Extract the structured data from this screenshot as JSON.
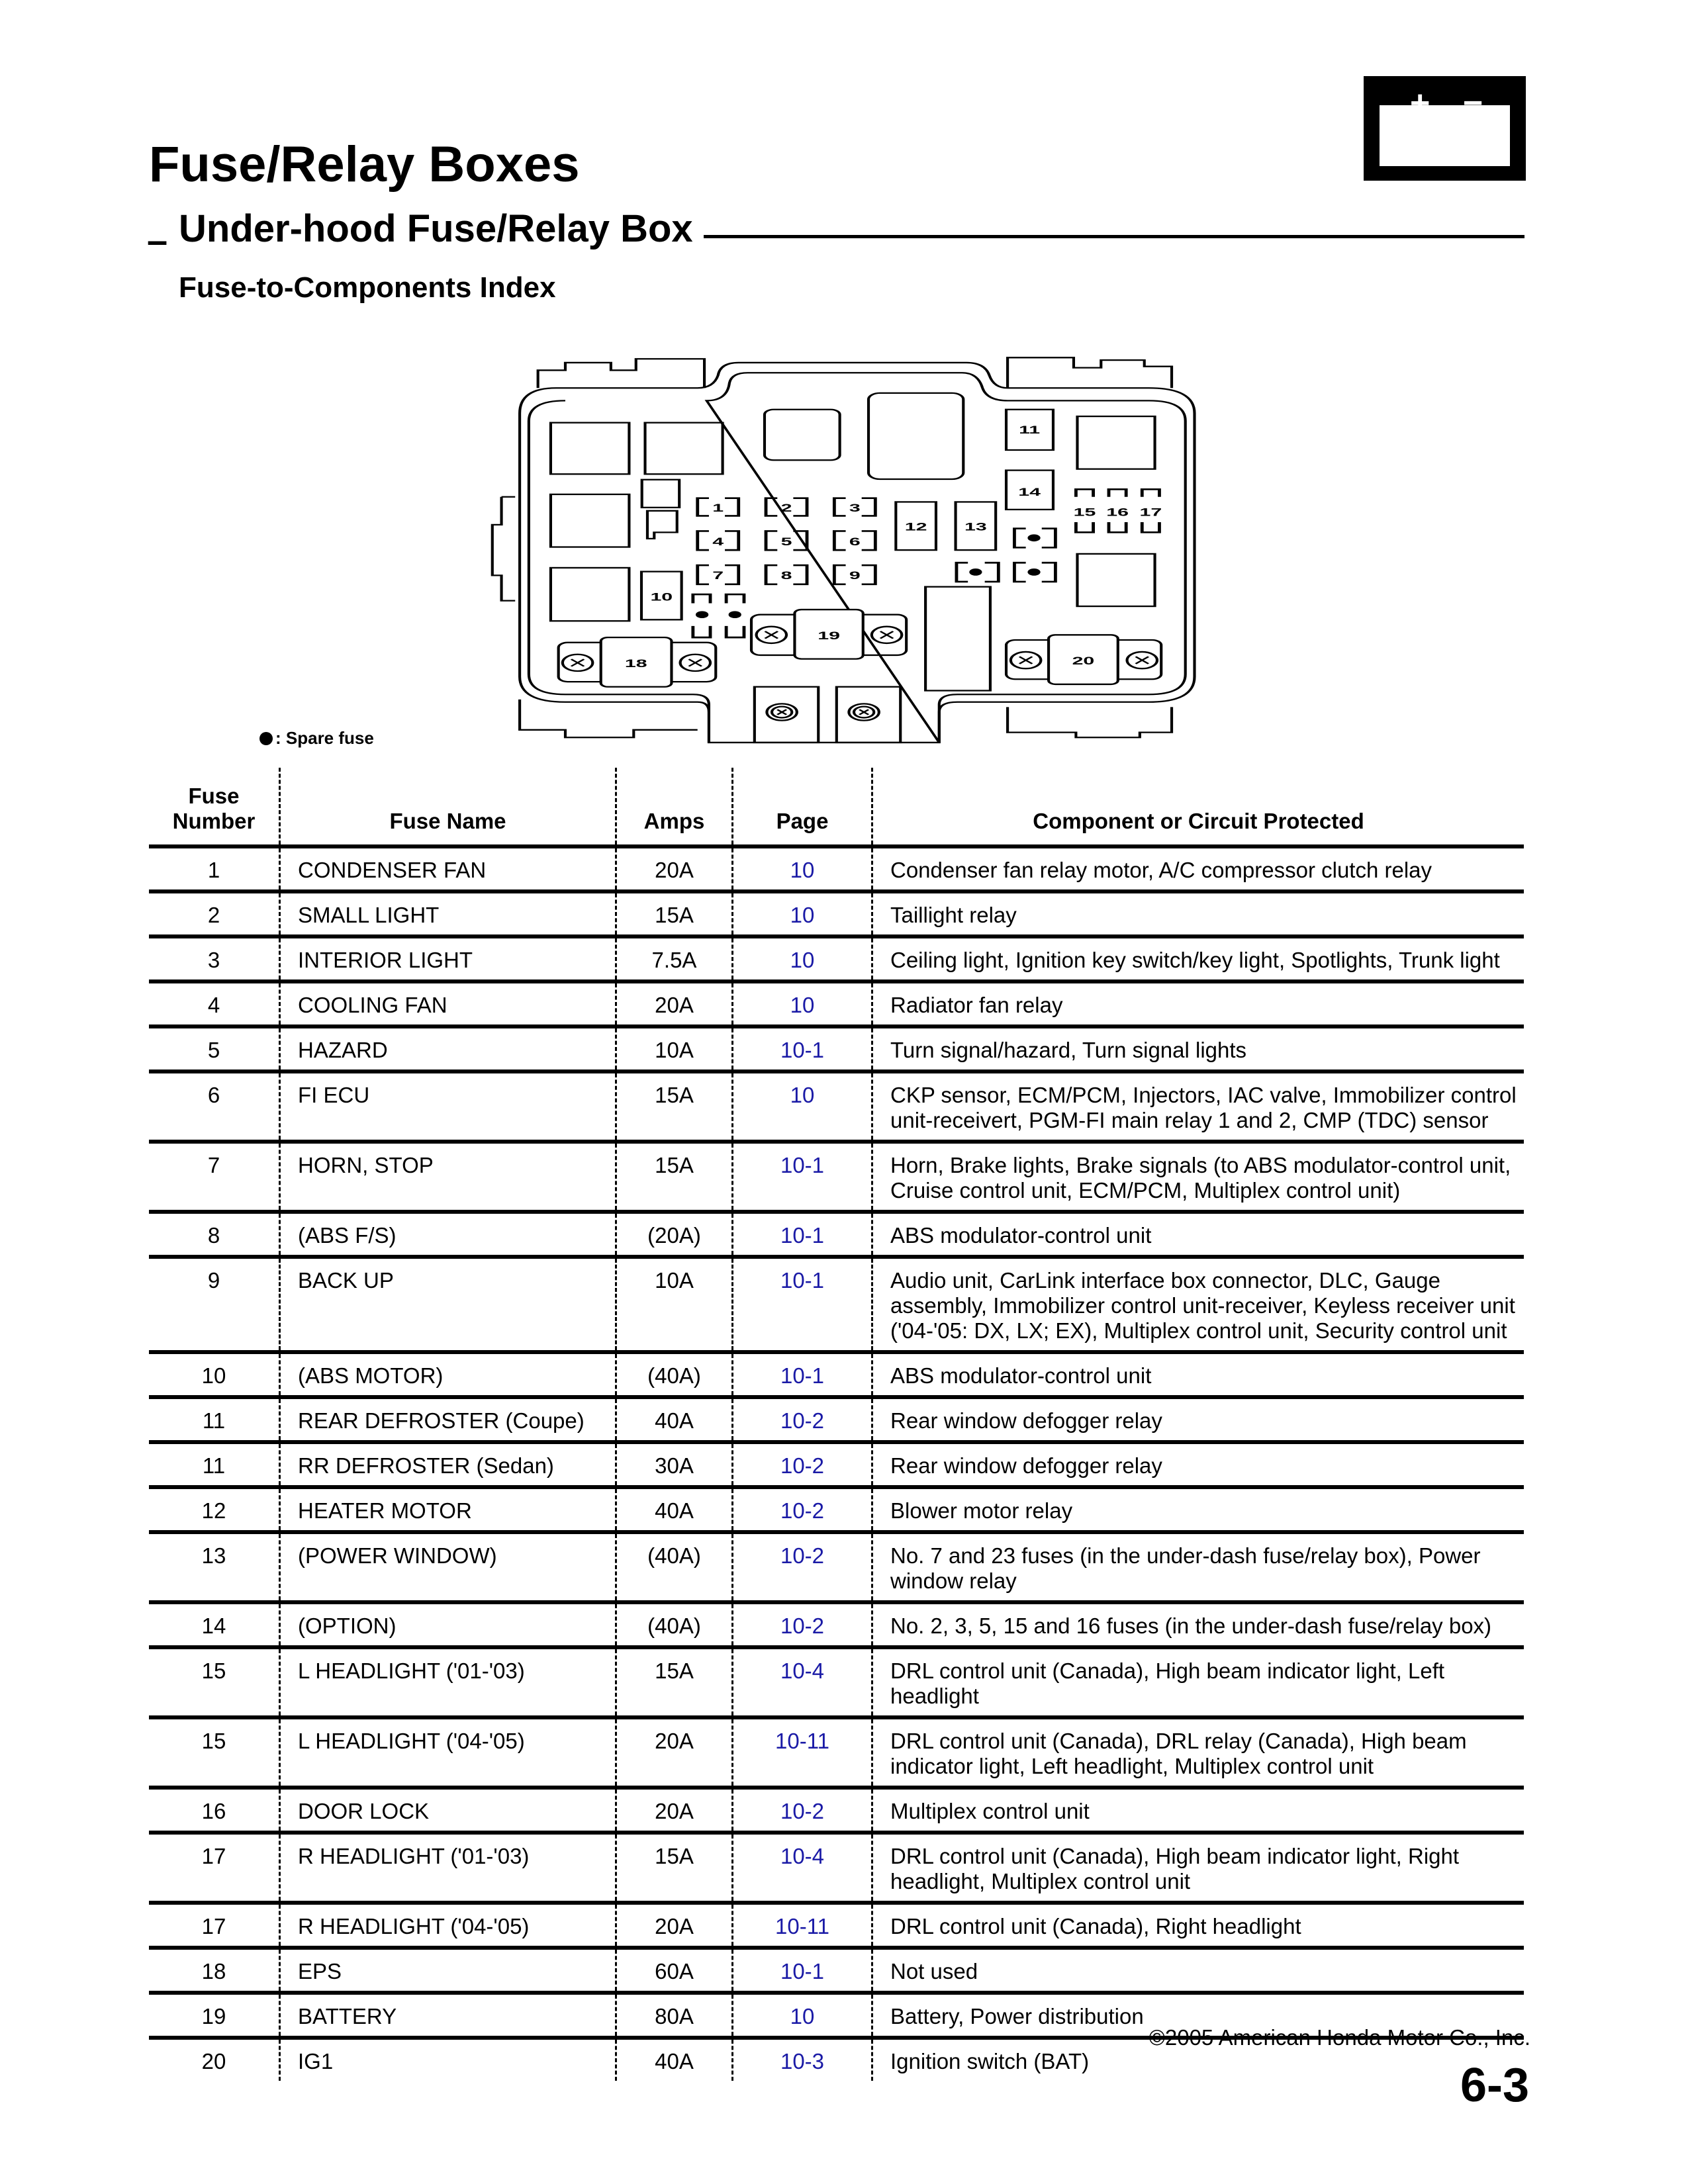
{
  "header": {
    "title": "Fuse/Relay Boxes",
    "subtitle_dash": "–",
    "subtitle": "Under-hood Fuse/Relay Box",
    "section": "Fuse-to-Components Index",
    "battery_icon": "battery-icon",
    "battery_plus": "+",
    "battery_minus": "−"
  },
  "diagram": {
    "labels": [
      "1",
      "2",
      "3",
      "4",
      "5",
      "6",
      "7",
      "8",
      "9",
      "10",
      "11",
      "12",
      "13",
      "14",
      "15",
      "16",
      "17",
      "18",
      "19",
      "20"
    ],
    "legend_symbol": "spare-fuse-dot",
    "legend_text": ": Spare fuse"
  },
  "table": {
    "headers": [
      "Fuse\nNumber",
      "Fuse Name",
      "Amps",
      "Page",
      "Component or Circuit Protected"
    ],
    "rows": [
      {
        "num": "1",
        "name": "CONDENSER FAN",
        "amps": "20A",
        "page": "10",
        "component": "Condenser fan relay motor, A/C compressor clutch relay"
      },
      {
        "num": "2",
        "name": "SMALL LIGHT",
        "amps": "15A",
        "page": "10",
        "component": "Taillight relay"
      },
      {
        "num": "3",
        "name": "INTERIOR LIGHT",
        "amps": "7.5A",
        "page": "10",
        "component": "Ceiling light, Ignition key switch/key light, Spotlights, Trunk light"
      },
      {
        "num": "4",
        "name": "COOLING FAN",
        "amps": "20A",
        "page": "10",
        "component": "Radiator fan relay"
      },
      {
        "num": "5",
        "name": "HAZARD",
        "amps": "10A",
        "page": "10-1",
        "component": "Turn signal/hazard, Turn signal lights"
      },
      {
        "num": "6",
        "name": "FI ECU",
        "amps": "15A",
        "page": "10",
        "component": "CKP sensor, ECM/PCM, Injectors, IAC valve, Immobilizer control unit-receivert, PGM-FI main relay 1 and 2, CMP (TDC) sensor",
        "lines": 2
      },
      {
        "num": "7",
        "name": "HORN, STOP",
        "amps": "15A",
        "page": "10-1",
        "component": "Horn, Brake lights, Brake signals (to ABS modulator-control unit, Cruise control unit, ECM/PCM, Multiplex control unit)",
        "lines": 2
      },
      {
        "num": "8",
        "name": "(ABS F/S)",
        "amps": "(20A)",
        "page": "10-1",
        "component": "ABS modulator-control unit"
      },
      {
        "num": "9",
        "name": "BACK UP",
        "amps": "10A",
        "page": "10-1",
        "component": "Audio unit, CarLink interface box connector, DLC, Gauge assembly, Immobilizer control unit-receiver, Keyless receiver unit ('04-'05: DX, LX; EX), Multiplex control unit, Security control unit",
        "lines": 3
      },
      {
        "num": "10",
        "name": "(ABS MOTOR)",
        "amps": "(40A)",
        "page": "10-1",
        "component": "ABS modulator-control unit"
      },
      {
        "num": "11",
        "name": "REAR DEFROSTER (Coupe)",
        "amps": "40A",
        "page": "10-2",
        "component": "Rear window defogger relay"
      },
      {
        "num": "11",
        "name": "RR DEFROSTER (Sedan)",
        "amps": "30A",
        "page": "10-2",
        "component": "Rear window defogger relay"
      },
      {
        "num": "12",
        "name": "HEATER MOTOR",
        "amps": "40A",
        "page": "10-2",
        "component": "Blower motor relay"
      },
      {
        "num": "13",
        "name": "(POWER WINDOW)",
        "amps": "(40A)",
        "page": "10-2",
        "component": "No. 7 and 23 fuses (in the under-dash fuse/relay box), Power window relay",
        "lines": 2
      },
      {
        "num": "14",
        "name": "(OPTION)",
        "amps": "(40A)",
        "page": "10-2",
        "component": "No. 2, 3, 5, 15 and 16 fuses (in the under-dash fuse/relay box)"
      },
      {
        "num": "15",
        "name": "L HEADLIGHT ('01-'03)",
        "amps": "15A",
        "page": "10-4",
        "component": "DRL control unit (Canada), High beam indicator light, Left headlight",
        "lines": 2
      },
      {
        "num": "15",
        "name": "L HEADLIGHT ('04-'05)",
        "amps": "20A",
        "page": "10-11",
        "component": "DRL control unit (Canada), DRL relay (Canada), High beam indicator light, Left headlight, Multiplex control unit",
        "lines": 2
      },
      {
        "num": "16",
        "name": "DOOR LOCK",
        "amps": "20A",
        "page": "10-2",
        "component": "Multiplex control unit"
      },
      {
        "num": "17",
        "name": "R HEADLIGHT ('01-'03)",
        "amps": "15A",
        "page": "10-4",
        "component": "DRL control unit (Canada), High beam indicator light, Right headlight, Multiplex control unit",
        "lines": 2
      },
      {
        "num": "17",
        "name": "R HEADLIGHT ('04-'05)",
        "amps": "20A",
        "page": "10-11",
        "component": "DRL control unit (Canada), Right headlight"
      },
      {
        "num": "18",
        "name": "EPS",
        "amps": "60A",
        "page": "10-1",
        "component": "Not used"
      },
      {
        "num": "19",
        "name": "BATTERY",
        "amps": "80A",
        "page": "10",
        "component": "Battery, Power distribution"
      },
      {
        "num": "20",
        "name": "IG1",
        "amps": "40A",
        "page": "10-3",
        "component": "Ignition switch (BAT)"
      }
    ]
  },
  "colors": {
    "page_link": "#1a1aa6",
    "ink": "#000000"
  },
  "footer": {
    "copyright": "©2005 American Honda Motor Co., Inc.",
    "page_number": "6-3"
  }
}
